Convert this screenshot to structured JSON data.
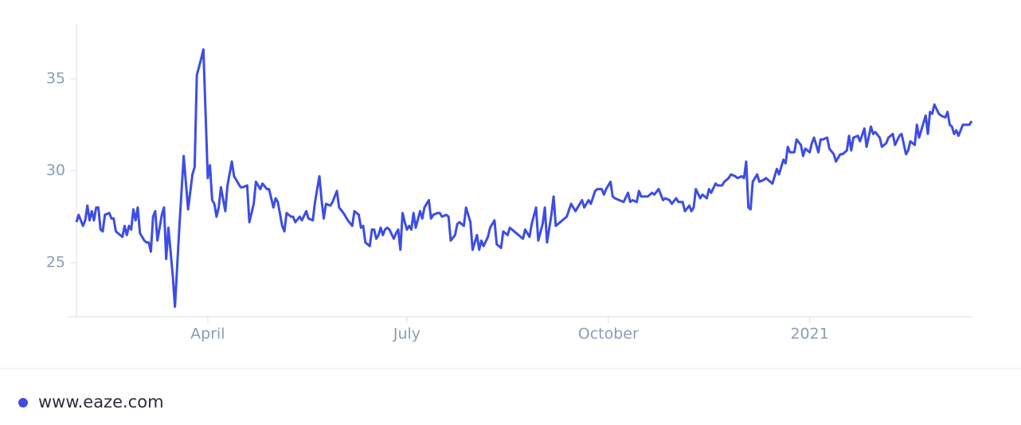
{
  "chart_data": {
    "type": "line",
    "x": [
      0,
      1,
      3,
      4,
      5,
      6,
      7,
      8,
      9,
      10,
      11,
      12,
      13,
      15,
      16,
      17,
      18,
      20,
      21,
      22,
      23,
      24,
      25,
      26,
      27,
      28,
      29,
      31,
      32,
      33,
      34,
      35,
      36,
      37,
      39,
      40,
      41,
      42,
      44,
      45,
      47,
      49,
      51,
      53,
      54,
      55,
      57,
      58,
      60,
      61,
      62,
      63,
      64,
      65,
      66,
      68,
      69,
      71,
      72,
      74,
      75,
      76,
      78,
      79,
      81,
      82,
      84,
      85,
      87,
      88,
      90,
      91,
      92,
      94,
      95,
      96,
      98,
      99,
      100,
      102,
      103,
      105,
      106,
      108,
      109,
      111,
      112,
      113,
      114,
      116,
      117,
      119,
      120,
      122,
      123,
      124,
      126,
      127,
      129,
      130,
      131,
      132,
      134,
      135,
      136,
      137,
      138,
      139,
      140,
      141,
      142,
      143,
      145,
      146,
      147,
      148,
      149,
      150,
      151,
      152,
      153,
      154,
      155,
      157,
      158,
      159,
      161,
      162,
      163,
      165,
      166,
      167,
      169,
      170,
      171,
      173,
      174,
      175,
      177,
      178,
      180,
      181,
      183,
      184,
      185,
      186,
      188,
      189,
      191,
      192,
      194,
      195,
      197,
      198,
      199,
      201,
      202,
      204,
      205,
      207,
      208,
      210,
      211,
      213,
      214,
      215,
      217,
      218,
      219,
      221,
      222,
      224,
      226,
      228,
      229,
      231,
      232,
      234,
      235,
      237,
      238,
      240,
      241,
      242,
      244,
      245,
      246,
      248,
      250,
      252,
      253,
      254,
      256,
      257,
      258,
      260,
      261,
      263,
      264,
      266,
      268,
      269,
      271,
      272,
      274,
      275,
      277,
      278,
      280,
      281,
      282,
      283,
      285,
      286,
      288,
      289,
      290,
      292,
      293,
      295,
      296,
      298,
      299,
      301,
      302,
      304,
      305,
      306,
      307,
      308,
      309,
      311,
      312,
      314,
      315,
      317,
      318,
      320,
      321,
      323,
      324,
      325,
      326,
      328,
      329,
      331,
      332,
      333,
      335,
      336,
      337,
      339,
      340,
      341,
      343,
      344,
      346,
      347,
      349,
      350,
      352,
      353,
      354,
      355,
      357,
      358,
      360,
      361,
      363,
      364,
      365,
      367,
      368,
      370,
      371,
      373,
      374,
      376,
      377,
      379,
      380,
      381,
      383,
      384,
      385,
      387,
      388,
      389,
      390,
      391,
      392,
      394,
      395,
      397,
      398,
      399,
      400,
      401,
      402,
      403,
      405,
      406,
      408,
      409
    ],
    "series": [
      {
        "name": "www.eaze.com",
        "color": "#3d4de3",
        "values": [
          27.2,
          27.6,
          27.0,
          27.3,
          28.1,
          27.3,
          27.8,
          27.3,
          28.0,
          28.0,
          26.8,
          26.7,
          27.6,
          27.7,
          27.4,
          27.4,
          26.7,
          26.5,
          26.4,
          27.0,
          26.5,
          27.0,
          26.8,
          27.9,
          27.3,
          28.0,
          26.6,
          26.2,
          26.1,
          26.1,
          25.6,
          27.5,
          27.8,
          26.2,
          27.6,
          28.0,
          25.2,
          26.9,
          24.3,
          22.6,
          26.9,
          30.8,
          27.9,
          29.8,
          30.2,
          35.2,
          36.1,
          36.6,
          29.6,
          30.3,
          28.4,
          28.2,
          27.5,
          28.0,
          29.1,
          27.8,
          29.2,
          30.5,
          29.7,
          29.3,
          29.1,
          29.1,
          29.2,
          27.2,
          28.2,
          29.4,
          29.0,
          29.3,
          29.0,
          29.0,
          28.0,
          28.5,
          28.3,
          27.0,
          26.7,
          27.7,
          27.5,
          27.5,
          27.2,
          27.5,
          27.3,
          27.8,
          27.4,
          27.3,
          28.3,
          29.7,
          28.4,
          27.4,
          28.2,
          28.1,
          28.3,
          28.9,
          28.0,
          27.7,
          27.5,
          27.3,
          27.0,
          27.8,
          27.6,
          26.9,
          27.0,
          26.1,
          25.9,
          26.8,
          26.8,
          26.3,
          26.5,
          26.9,
          26.5,
          26.8,
          26.9,
          26.8,
          26.3,
          26.6,
          26.8,
          25.7,
          27.7,
          27.2,
          26.8,
          27.0,
          26.8,
          27.7,
          26.9,
          27.8,
          27.4,
          28.0,
          28.4,
          27.4,
          27.6,
          27.7,
          27.7,
          27.5,
          27.6,
          27.5,
          26.2,
          26.5,
          27.1,
          27.2,
          27.0,
          28.0,
          27.2,
          25.7,
          26.5,
          25.7,
          26.2,
          25.9,
          26.4,
          26.9,
          27.3,
          26.0,
          25.8,
          26.7,
          26.5,
          26.9,
          26.8,
          26.6,
          26.5,
          26.3,
          26.8,
          26.4,
          27.1,
          28.0,
          26.2,
          27.1,
          28.0,
          26.1,
          27.6,
          28.6,
          27.0,
          27.2,
          27.3,
          27.5,
          28.2,
          27.8,
          28.0,
          28.4,
          28.0,
          28.4,
          28.2,
          28.9,
          29.0,
          29.0,
          28.7,
          29.0,
          29.4,
          28.6,
          28.5,
          28.4,
          28.3,
          28.8,
          28.3,
          28.4,
          28.3,
          28.9,
          28.6,
          28.6,
          28.6,
          28.8,
          28.7,
          29.0,
          28.4,
          28.5,
          28.4,
          28.2,
          28.5,
          28.3,
          28.3,
          27.8,
          28.1,
          27.8,
          28.0,
          29.0,
          28.5,
          28.7,
          28.5,
          29.0,
          28.8,
          29.3,
          29.2,
          29.2,
          29.4,
          29.6,
          29.8,
          29.7,
          29.6,
          29.7,
          29.6,
          30.5,
          28.0,
          27.9,
          29.4,
          29.8,
          29.4,
          29.5,
          29.6,
          29.4,
          29.3,
          30.1,
          29.8,
          30.6,
          30.4,
          31.3,
          31.0,
          31.0,
          31.7,
          31.4,
          30.8,
          31.2,
          31.0,
          31.5,
          31.8,
          31.0,
          31.7,
          31.7,
          31.8,
          31.2,
          30.9,
          30.5,
          30.9,
          30.9,
          31.1,
          31.9,
          31.1,
          31.8,
          31.9,
          31.6,
          32.3,
          31.3,
          32.4,
          32.0,
          32.1,
          31.8,
          31.3,
          31.5,
          31.8,
          32.0,
          31.4,
          31.9,
          32.0,
          30.9,
          31.1,
          31.6,
          31.4,
          32.5,
          31.8,
          32.6,
          33.0,
          32.0,
          33.2,
          33.1,
          33.6,
          33.1,
          33.0,
          32.9,
          33.2,
          32.5,
          32.4,
          32.0,
          32.2,
          31.9,
          32.5,
          32.5,
          32.5,
          32.7
        ]
      }
    ],
    "xlim": [
      0,
      409
    ],
    "xticks": [
      {
        "value": 60,
        "label": "April"
      },
      {
        "value": 151,
        "label": "July"
      },
      {
        "value": 243,
        "label": "October"
      },
      {
        "value": 335,
        "label": "2021"
      }
    ],
    "ylim": [
      22,
      38
    ],
    "yticks": [
      25,
      30,
      35
    ],
    "grid": false
  }
}
